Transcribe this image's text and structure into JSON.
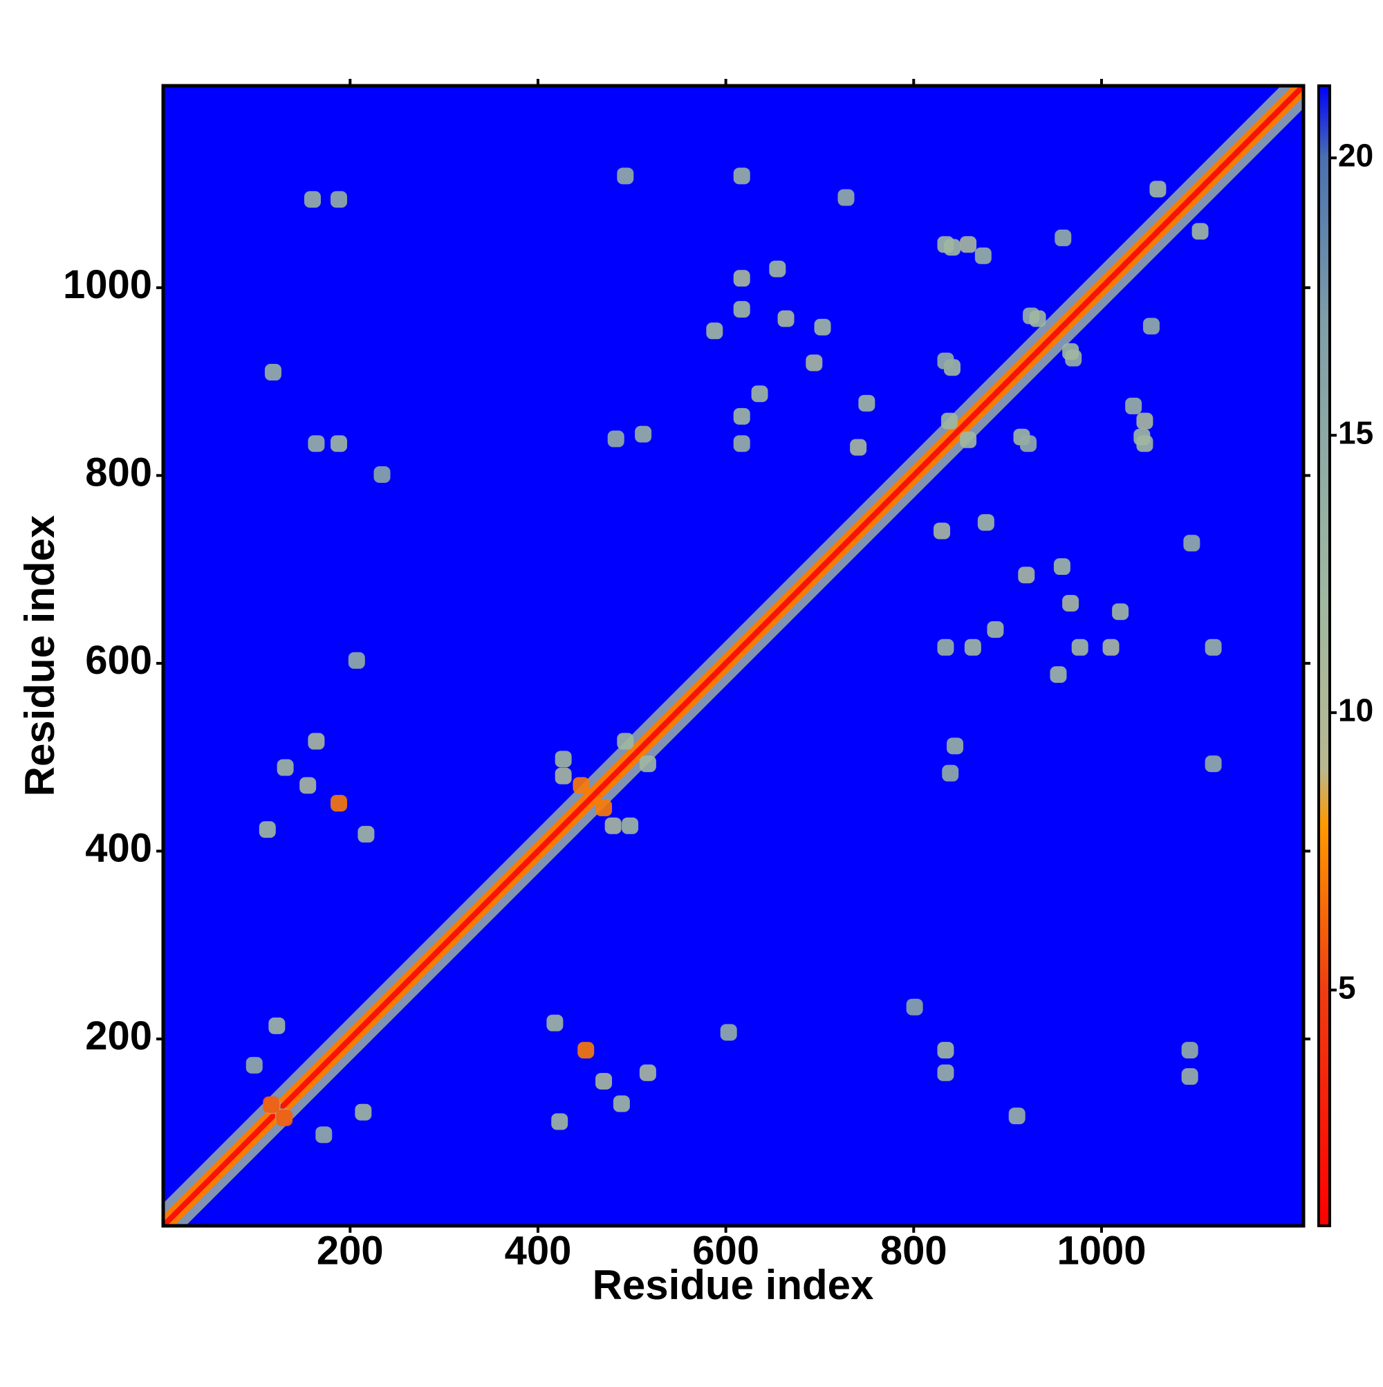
{
  "chart_data": {
    "type": "heatmap",
    "xlabel": "Residue index",
    "ylabel": "Residue index",
    "xlim": [
      1,
      1215
    ],
    "ylim": [
      1,
      1215
    ],
    "xticks": [
      200,
      400,
      600,
      800,
      1000
    ],
    "yticks": [
      200,
      400,
      600,
      800,
      1000
    ],
    "symmetric": true,
    "background_color": "#0000ff",
    "colorbar": {
      "lim": [
        0.75,
        21.3
      ],
      "ticks": [
        5,
        10,
        15,
        20
      ],
      "stops": [
        {
          "value": 0.75,
          "color": "#ff0000"
        },
        {
          "value": 5,
          "color": "#f03c10"
        },
        {
          "value": 8,
          "color": "#ff9a00"
        },
        {
          "value": 9,
          "color": "#b8b890"
        },
        {
          "value": 12,
          "color": "#a0b8a0"
        },
        {
          "value": 17,
          "color": "#7f9fa8"
        },
        {
          "value": 20,
          "color": "#4a70b0"
        },
        {
          "value": 21.3,
          "color": "#0000ff"
        }
      ]
    },
    "diagonal": {
      "start": 1,
      "end": 1215,
      "values": [
        12,
        7,
        2
      ]
    },
    "x": [
      160,
      188,
      118,
      188,
      164,
      234,
      207,
      131,
      164,
      112,
      188,
      217,
      155,
      122,
      98,
      117,
      427,
      493,
      427,
      446,
      617,
      655,
      617,
      664,
      703,
      694,
      636,
      617,
      617,
      750,
      741,
      493,
      617,
      728,
      512,
      483,
      588,
      841,
      874,
      959,
      1060,
      970,
      932,
      1046,
      1046,
      841,
      922,
      838,
      116
    ],
    "y": [
      1094,
      1094,
      910,
      834,
      834,
      801,
      603,
      489,
      517,
      423,
      451,
      418,
      470,
      214,
      172,
      129,
      498,
      517,
      480,
      470,
      1010,
      1020,
      977,
      967,
      958,
      920,
      887,
      863,
      834,
      877,
      830,
      1119,
      1119,
      1096,
      844,
      839,
      954,
      1043,
      1034,
      1053,
      1105,
      925,
      967,
      858,
      834,
      915,
      834,
      858,
      130
    ],
    "values": [
      13,
      14,
      13,
      12,
      13,
      15,
      14,
      12,
      11,
      12,
      7,
      12,
      11,
      12,
      14,
      13,
      12,
      12,
      11,
      7,
      11,
      12,
      12,
      11,
      12,
      11,
      12,
      12,
      13,
      12,
      11,
      14,
      13,
      14,
      13,
      14,
      12,
      12,
      13,
      14,
      12,
      13,
      12,
      11,
      12,
      12,
      14,
      12,
      6
    ]
  }
}
